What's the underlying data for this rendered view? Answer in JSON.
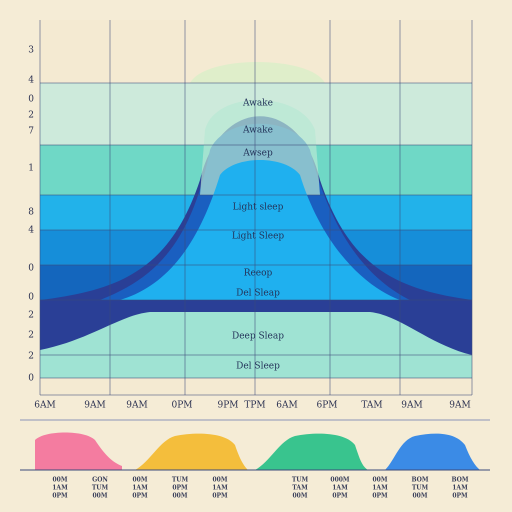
{
  "y_labels": [
    "3",
    "4",
    "0",
    "2",
    "7",
    "1",
    "8",
    "4",
    "0",
    "0",
    "2",
    "2",
    "2",
    "0"
  ],
  "x_labels": [
    "6AM",
    "9AM",
    "9AM",
    "0PM",
    "9PM",
    "TPM",
    "6AM",
    "6PM",
    "TAM",
    "9AM",
    "9AM"
  ],
  "stages": [
    "Awake",
    "Awake",
    "Awsep",
    "Light sleep",
    "Light Sleep",
    "Reeop",
    "Del Sleap",
    "Deep Sleap",
    "Del Sleep"
  ],
  "timeline": [
    [
      "00M",
      "1AM",
      "0PM"
    ],
    [
      "GON",
      "TUM",
      "00M"
    ],
    [
      "00M",
      "1AM",
      "0PM"
    ],
    [
      "TUM",
      "0PM",
      "00M"
    ],
    [
      "00M",
      "1AM",
      "0PM"
    ],
    [
      "TUM",
      "TAM",
      "00M"
    ],
    [
      "000M",
      "1AM",
      "0PM"
    ],
    [
      "00M",
      "1AM",
      "0PM"
    ],
    [
      "BOM",
      "TUM",
      "00M"
    ],
    [
      "BOM",
      "1AM",
      "0PM"
    ]
  ]
}
